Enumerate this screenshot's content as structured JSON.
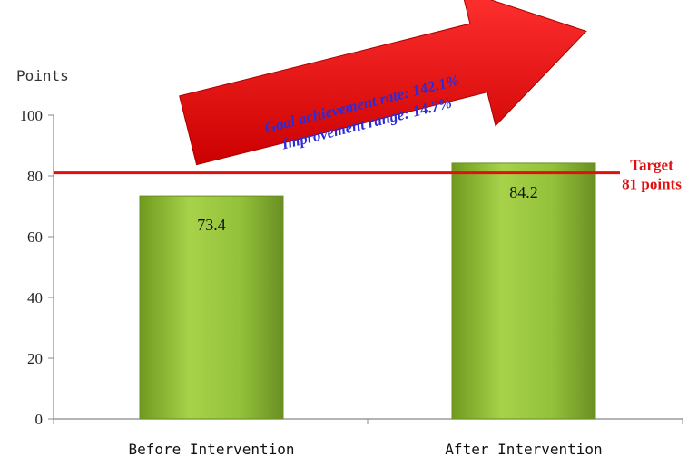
{
  "chart_data": {
    "type": "bar",
    "ylabel": "Points",
    "categories": [
      "Before Intervention",
      "After Intervention"
    ],
    "values": [
      73.4,
      84.2
    ],
    "ylim": [
      0,
      100
    ],
    "yticks": [
      0,
      20,
      40,
      60,
      80,
      100
    ],
    "target_line": {
      "value": 81,
      "label_line1": "Target",
      "label_line2": "81 points"
    },
    "annotation_arrow": {
      "line1": "Goal achievement rate:  142.1%",
      "line2": "Improvement range: 14.7%"
    },
    "grid": false
  },
  "colors": {
    "bar_fill": "#93c13a",
    "bar_edge": "#6a8f22",
    "target_line": "#e01010",
    "arrow_fill": "#ee1111",
    "arrow_text": "#2b2bd8"
  }
}
